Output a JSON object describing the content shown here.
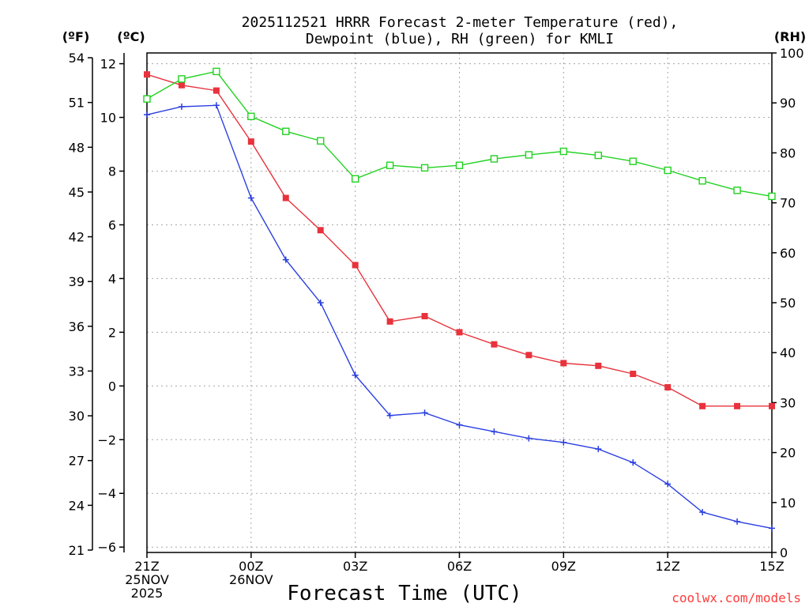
{
  "colors": {
    "temperature": "#e8323c",
    "dewpoint": "#2a3fe0",
    "rh": "#22d222",
    "credit": "#ff3b3b",
    "grid": "#a8a8a8"
  },
  "chart_data": {
    "type": "line",
    "title_line1": "2025112521 HRRR Forecast 2-meter Temperature (red),",
    "title_line2": "Dewpoint (blue), RH (green) for KMLI",
    "xlabel": "Forecast Time (UTC)",
    "credit": "coolwx.com/models",
    "unit_f": "(ºF)",
    "unit_c": "(ºC)",
    "unit_rh": "(RH)",
    "x": [
      0,
      1,
      2,
      3,
      4,
      5,
      6,
      7,
      8,
      9,
      10,
      11,
      12,
      13,
      14,
      15,
      16,
      17,
      18
    ],
    "xlim": [
      0,
      18
    ],
    "x_ticks": [
      {
        "x": 0,
        "lines": [
          "21Z",
          "25NOV",
          "2025"
        ]
      },
      {
        "x": 3,
        "lines": [
          "00Z",
          "26NOV"
        ]
      },
      {
        "x": 6,
        "lines": [
          "03Z"
        ]
      },
      {
        "x": 9,
        "lines": [
          "06Z"
        ]
      },
      {
        "x": 12,
        "lines": [
          "09Z"
        ]
      },
      {
        "x": 15,
        "lines": [
          "12Z"
        ]
      },
      {
        "x": 18,
        "lines": [
          "15Z"
        ]
      }
    ],
    "y_celsius": {
      "range": [
        -6.2,
        12.4
      ],
      "ticks": [
        -6,
        -4,
        -2,
        0,
        2,
        4,
        6,
        8,
        10,
        12
      ]
    },
    "y_fahrenheit": {
      "ticks": [
        21,
        24,
        27,
        30,
        33,
        36,
        39,
        42,
        45,
        48,
        51,
        54
      ]
    },
    "y_rh": {
      "range": [
        0,
        100
      ],
      "ticks": [
        0,
        10,
        20,
        30,
        40,
        50,
        60,
        70,
        80,
        90,
        100
      ]
    },
    "series": [
      {
        "name": "Temperature",
        "axis": "celsius",
        "marker": "square-filled",
        "values": [
          11.6,
          11.2,
          11.0,
          9.1,
          7.0,
          5.8,
          4.5,
          2.4,
          2.6,
          2.0,
          1.55,
          1.15,
          0.85,
          0.75,
          0.45,
          -0.05,
          -0.75,
          -0.75,
          -0.75
        ]
      },
      {
        "name": "Dewpoint",
        "axis": "celsius",
        "marker": "plus",
        "values": [
          10.1,
          10.4,
          10.45,
          7.0,
          4.7,
          3.1,
          0.4,
          -1.1,
          -1.0,
          -1.45,
          -1.7,
          -1.95,
          -2.1,
          -2.35,
          -2.85,
          -3.65,
          -4.7,
          -5.05,
          -5.3
        ]
      },
      {
        "name": "RH",
        "axis": "rh",
        "marker": "square-open",
        "values": [
          90.8,
          94.8,
          96.3,
          87.3,
          84.3,
          82.4,
          74.8,
          77.5,
          77.0,
          77.5,
          78.8,
          79.6,
          80.3,
          79.5,
          78.3,
          76.5,
          74.4,
          72.5,
          71.3
        ]
      }
    ]
  }
}
